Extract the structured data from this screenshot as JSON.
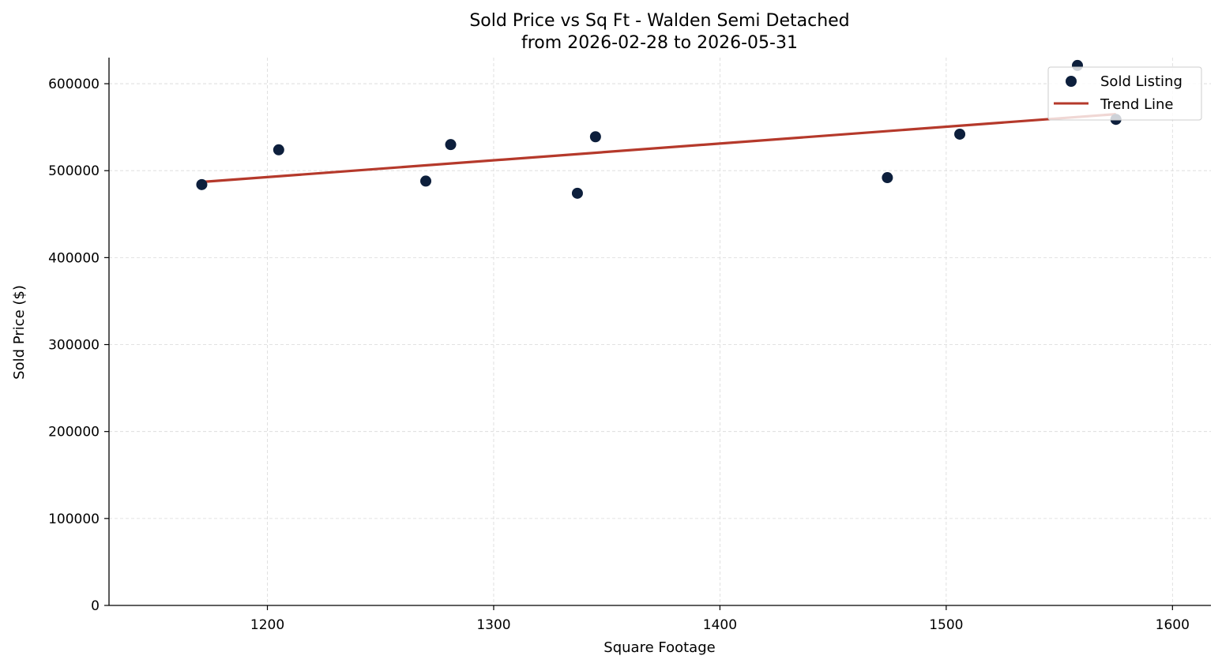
{
  "chart_data": {
    "type": "scatter",
    "title": "Sold Price vs Sq Ft - Walden Semi Detached",
    "subtitle": "from 2026-02-28 to 2026-05-31",
    "xlabel": "Square Footage",
    "ylabel": "Sold Price ($)",
    "xlim": [
      1130,
      1617
    ],
    "ylim": [
      0,
      630000
    ],
    "x_ticks": [
      1200,
      1300,
      1400,
      1500,
      1600
    ],
    "y_ticks": [
      0,
      100000,
      200000,
      300000,
      400000,
      500000,
      600000
    ],
    "x_tick_labels": [
      "1200",
      "1300",
      "1400",
      "1500",
      "1600"
    ],
    "y_tick_labels": [
      "0",
      "100000",
      "200000",
      "300000",
      "400000",
      "500000",
      "600000"
    ],
    "grid": true,
    "legend_position": "top-right",
    "series": [
      {
        "name": "Sold Listing",
        "type": "scatter",
        "color": "#0d1f3c",
        "points": [
          {
            "x": 1171,
            "y": 484000
          },
          {
            "x": 1205,
            "y": 524000
          },
          {
            "x": 1270,
            "y": 488000
          },
          {
            "x": 1281,
            "y": 530000
          },
          {
            "x": 1337,
            "y": 474000
          },
          {
            "x": 1345,
            "y": 539000
          },
          {
            "x": 1474,
            "y": 492000
          },
          {
            "x": 1506,
            "y": 542000
          },
          {
            "x": 1558,
            "y": 621000
          },
          {
            "x": 1575,
            "y": 559000
          }
        ]
      },
      {
        "name": "Trend Line",
        "type": "line",
        "color": "#b5392b",
        "points": [
          {
            "x": 1171,
            "y": 487000
          },
          {
            "x": 1575,
            "y": 565000
          }
        ]
      }
    ]
  }
}
